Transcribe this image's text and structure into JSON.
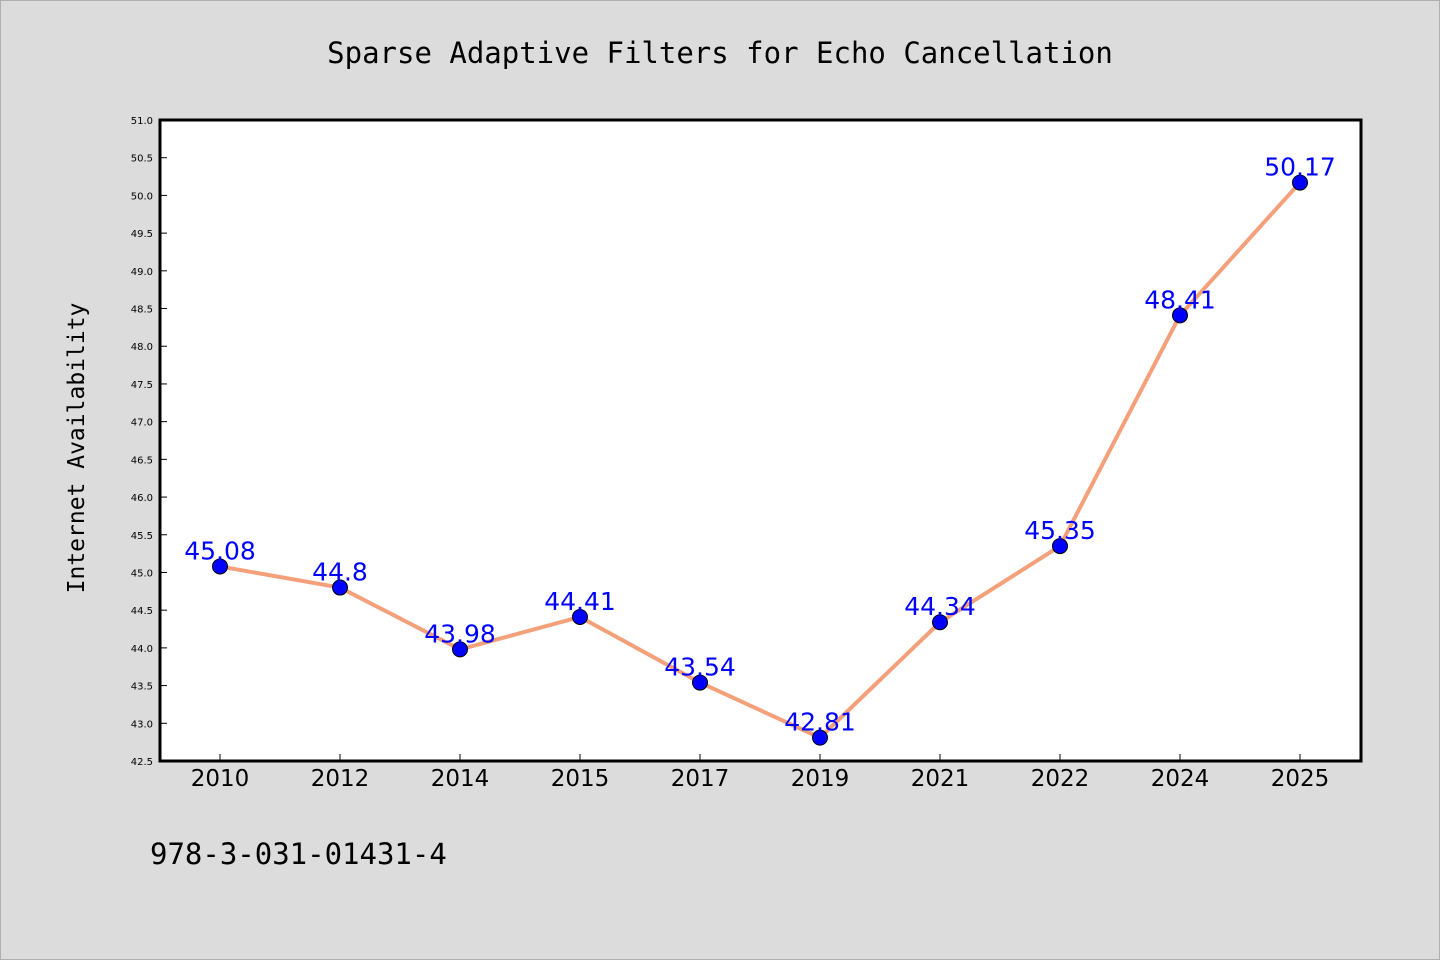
{
  "chart_data": {
    "type": "line",
    "title": "Sparse Adaptive Filters for Echo Cancellation",
    "xlabel": "",
    "ylabel": "Internet Availability",
    "categories": [
      "2010",
      "2012",
      "2014",
      "2015",
      "2017",
      "2019",
      "2021",
      "2022",
      "2024",
      "2025"
    ],
    "series": [
      {
        "values": [
          45.08,
          44.8,
          43.98,
          44.41,
          43.54,
          42.81,
          44.34,
          45.35,
          48.41,
          50.17
        ],
        "labels": [
          "45.08",
          "44.8",
          "43.98",
          "44.41",
          "43.54",
          "42.81",
          "44.34",
          "45.35",
          "48.41",
          "50.17"
        ],
        "line_color": "#f4a07a",
        "marker_color": "#0000ff"
      }
    ],
    "ylim": [
      42.5,
      51.0
    ],
    "yticks": [
      "42.5",
      "43.0",
      "43.5",
      "44.0",
      "44.5",
      "45.0",
      "45.5",
      "46.0",
      "46.5",
      "47.0",
      "47.5",
      "48.0",
      "48.5",
      "49.0",
      "49.5",
      "50.0",
      "50.5",
      "51.0"
    ],
    "grid": false,
    "legend": "none"
  },
  "footer": {
    "isbn": "978-3-031-01431-4"
  }
}
